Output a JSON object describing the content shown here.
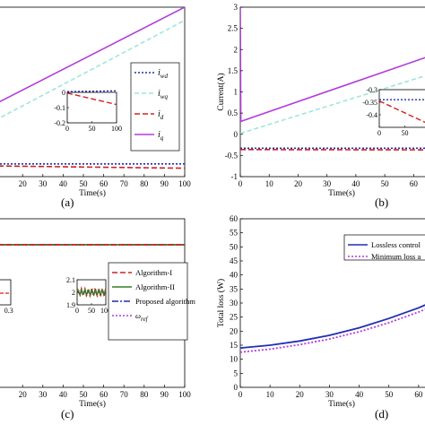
{
  "chart_data": [
    {
      "id": "a",
      "type": "line",
      "caption": "(a)",
      "xlabel": "Time(s)",
      "ylabel": "",
      "xlim": [
        0,
        100
      ],
      "xticks": [
        "20",
        "30",
        "40",
        "50",
        "60",
        "70",
        "80",
        "90",
        "100"
      ],
      "xtick_vals": [
        20,
        30,
        40,
        50,
        60,
        70,
        80,
        90,
        100
      ],
      "ylim": [
        -0.6,
        3.0
      ],
      "yticks": [],
      "legend": {
        "position": "right",
        "entries": [
          {
            "label": "i",
            "sub": "wd",
            "color": "#1f2fb0",
            "dash": "2,2"
          },
          {
            "label": "i",
            "sub": "wq",
            "color": "#9ee6dc",
            "dash": "5,3"
          },
          {
            "label": "i",
            "sub": "d",
            "color": "#d42020",
            "dash": "6,3"
          },
          {
            "label": "i",
            "sub": "q",
            "color": "#b23bdc",
            "dash": ""
          }
        ]
      },
      "series": [
        {
          "color": "#b23bdc",
          "dash": "",
          "x": [
            0,
            100
          ],
          "y": [
            0.8,
            3.0
          ]
        },
        {
          "color": "#9ee6dc",
          "dash": "5,3",
          "x": [
            0,
            100
          ],
          "y": [
            0.45,
            2.72
          ]
        },
        {
          "color": "#1f2fb0",
          "dash": "2,2",
          "x": [
            0,
            100
          ],
          "y": [
            -0.33,
            -0.33
          ]
        },
        {
          "color": "#d42020",
          "dash": "6,3",
          "x": [
            0,
            100
          ],
          "y": [
            -0.37,
            -0.42
          ]
        }
      ],
      "inset": {
        "xlim": [
          0,
          100
        ],
        "ylim": [
          -0.2,
          0
        ],
        "xticks": [
          "0",
          "50",
          "100"
        ],
        "xtick_vals": [
          0,
          50,
          100
        ],
        "yticks": [
          "0",
          "-0.1",
          "-0.2"
        ],
        "ytick_vals": [
          0,
          -0.1,
          -0.2
        ],
        "series": [
          {
            "color": "#1f2fb0",
            "dash": "2,2",
            "x": [
              0,
              100
            ],
            "y": [
              0.005,
              0.01
            ]
          },
          {
            "color": "#d42020",
            "dash": "6,3",
            "x": [
              0,
              100
            ],
            "y": [
              -0.005,
              -0.08
            ]
          }
        ]
      }
    },
    {
      "id": "b",
      "type": "line",
      "caption": "(b)",
      "xlabel": "Time(s)",
      "ylabel": "Current(A)",
      "xlim": [
        0,
        72
      ],
      "xticks": [
        "0",
        "10",
        "20",
        "30",
        "40",
        "50",
        "60"
      ],
      "xtick_vals": [
        0,
        10,
        20,
        30,
        40,
        50,
        60
      ],
      "ylim": [
        -1,
        3
      ],
      "yticks": [
        "3",
        "2.5",
        "2",
        "1.5",
        "1",
        "0.5",
        "0",
        "-0.5",
        "-1"
      ],
      "ytick_vals": [
        3,
        2.5,
        2,
        1.5,
        1,
        0.5,
        0,
        -0.5,
        -1
      ],
      "series": [
        {
          "color": "#b23bdc",
          "dash": "",
          "x": [
            0,
            72
          ],
          "y": [
            0.3,
            2.0
          ]
        },
        {
          "color": "#9ee6dc",
          "dash": "5,3",
          "x": [
            0,
            72
          ],
          "y": [
            0.02,
            1.55
          ]
        },
        {
          "color": "#1f2fb0",
          "dash": "2,2",
          "x": [
            0,
            72
          ],
          "y": [
            -0.33,
            -0.33
          ]
        },
        {
          "color": "#d42020",
          "dash": "6,3",
          "x": [
            0,
            72
          ],
          "y": [
            -0.36,
            -0.37
          ]
        },
        {
          "color": "#b23bdc",
          "dash": "",
          "x": [
            0,
            0.2
          ],
          "y": [
            3.0,
            0.3
          ]
        }
      ],
      "inset": {
        "xlim": [
          0,
          100
        ],
        "ylim": [
          -0.45,
          -0.3
        ],
        "xticks": [
          "0",
          "50"
        ],
        "xtick_vals": [
          0,
          50
        ],
        "yticks": [
          "-0.3",
          "-0.35",
          "-0.4"
        ],
        "ytick_vals": [
          -0.3,
          -0.35,
          -0.4
        ],
        "series": [
          {
            "color": "#1f2fb0",
            "dash": "2,2",
            "x": [
              0,
              100
            ],
            "y": [
              -0.34,
              -0.34
            ]
          },
          {
            "color": "#d42020",
            "dash": "6,3",
            "x": [
              0,
              100
            ],
            "y": [
              -0.345,
              -0.44
            ]
          }
        ]
      }
    },
    {
      "id": "c",
      "type": "line",
      "caption": "(c)",
      "xlabel": "Time(s)",
      "ylabel": "",
      "xlim": [
        0,
        100
      ],
      "xticks": [
        "20",
        "30",
        "40",
        "50",
        "60",
        "70",
        "80",
        "90",
        "100"
      ],
      "xtick_vals": [
        20,
        30,
        40,
        50,
        60,
        70,
        80,
        90,
        100
      ],
      "ylim": [
        -0.2,
        2.4
      ],
      "yticks": [],
      "legend": {
        "position": "right",
        "entries": [
          {
            "label": "Algorithm-I",
            "sub": "",
            "color": "#d42020",
            "dash": "6,3"
          },
          {
            "label": "Algorithm-II",
            "sub": "",
            "color": "#3a7a2a",
            "dash": ""
          },
          {
            "label": "Proposed algorithm",
            "sub": "",
            "color": "#1f2fb0",
            "dash": "7,2,2,2"
          },
          {
            "label": "ω",
            "sub": "ref",
            "color": "#b23bdc",
            "dash": "2,2"
          }
        ]
      },
      "series": [
        {
          "color": "#b23bdc",
          "dash": "2,2",
          "x": [
            0,
            100
          ],
          "y": [
            2.0,
            2.0
          ]
        },
        {
          "color": "#1f2fb0",
          "dash": "7,2,2,2",
          "x": [
            0,
            100
          ],
          "y": [
            2.0,
            2.0
          ]
        },
        {
          "color": "#3a7a2a",
          "dash": "",
          "x": [
            0,
            100
          ],
          "y": [
            2.0,
            2.0
          ]
        },
        {
          "color": "#d42020",
          "dash": "6,3",
          "x": [
            0,
            100
          ],
          "y": [
            2.0,
            2.0
          ]
        }
      ],
      "small_inset": {
        "xlim": [
          0,
          0.35
        ],
        "xticks": [
          "0.3"
        ],
        "xtick_vals": [
          0.3
        ]
      },
      "inset": {
        "xlim": [
          0,
          100
        ],
        "ylim": [
          1.9,
          2.1
        ],
        "xticks": [
          "0",
          "50",
          "100"
        ],
        "xtick_vals": [
          0,
          50,
          100
        ],
        "yticks": [
          "2.1",
          "2",
          "1.9"
        ],
        "ytick_vals": [
          2.1,
          2.0,
          1.9
        ],
        "series": [
          {
            "color": "#b23bdc",
            "dash": "2,2",
            "x": [
              0,
              100
            ],
            "y": [
              2.0,
              2.0
            ]
          },
          {
            "color": "#d42020",
            "dash": "4,2",
            "x": [
              0,
              100
            ],
            "y": [
              2.0,
              2.0
            ],
            "wave": 0.03
          },
          {
            "color": "#3a7a2a",
            "dash": "",
            "x": [
              0,
              100
            ],
            "y": [
              2.0,
              2.0
            ],
            "wave": 0.02
          }
        ]
      }
    },
    {
      "id": "d",
      "type": "line",
      "caption": "(d)",
      "xlabel": "Time(s)",
      "ylabel": "Total loss (W)",
      "xlim": [
        0,
        70
      ],
      "xticks": [
        "0",
        "10",
        "20",
        "30",
        "40",
        "50",
        "60"
      ],
      "xtick_vals": [
        0,
        10,
        20,
        30,
        40,
        50,
        60
      ],
      "ylim": [
        0,
        60
      ],
      "yticks": [
        "60",
        "55",
        "50",
        "45",
        "40",
        "35",
        "30",
        "25",
        "20",
        "15",
        "10",
        "5",
        "0"
      ],
      "ytick_vals": [
        60,
        55,
        50,
        45,
        40,
        35,
        30,
        25,
        20,
        15,
        10,
        5,
        0
      ],
      "legend": {
        "position": "top-right",
        "entries": [
          {
            "label": "Lossless control",
            "sub": "",
            "color": "#1f2fb0",
            "dash": ""
          },
          {
            "label": "Minimum loss a",
            "sub": "",
            "color": "#b23bdc",
            "dash": "2,2"
          }
        ]
      },
      "series": [
        {
          "color": "#1f2fb0",
          "dash": "",
          "x": [
            0,
            10,
            20,
            30,
            40,
            50,
            60,
            70
          ],
          "y": [
            14,
            15,
            16.5,
            18.5,
            21.2,
            24.5,
            28.3,
            32.8
          ]
        },
        {
          "color": "#b23bdc",
          "dash": "2,2",
          "x": [
            0,
            10,
            20,
            30,
            40,
            50,
            60,
            70
          ],
          "y": [
            12.5,
            13.6,
            15.2,
            17.2,
            19.8,
            23,
            26.8,
            31.2
          ]
        }
      ]
    }
  ]
}
